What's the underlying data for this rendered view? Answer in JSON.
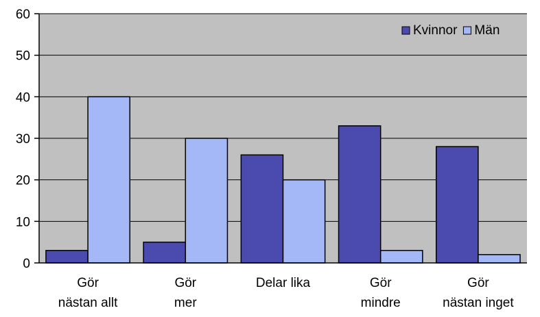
{
  "chart_data": {
    "type": "bar",
    "title": "",
    "xlabel": "",
    "ylabel": "",
    "ylim": [
      0,
      60
    ],
    "yticks": [
      0,
      10,
      20,
      30,
      40,
      50,
      60
    ],
    "grid": true,
    "legend_position": "top-right",
    "categories": [
      [
        "Gör",
        "nästan allt"
      ],
      [
        "Gör",
        "mer"
      ],
      [
        "Delar lika"
      ],
      [
        "Gör",
        "mindre"
      ],
      [
        "Gör",
        "nästan inget"
      ]
    ],
    "series": [
      {
        "name": "Kvinnor",
        "color": "#4B4BAF",
        "values": [
          3,
          5,
          26,
          33,
          28
        ]
      },
      {
        "name": "Män",
        "color": "#A4B8F7",
        "values": [
          40,
          30,
          20,
          3,
          2
        ]
      }
    ],
    "plot_background": "#C0C0C0"
  }
}
